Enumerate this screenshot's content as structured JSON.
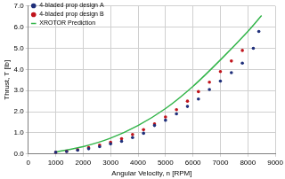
{
  "chart_data": {
    "type": "scatter",
    "x_label": "Angular Velocity, n [RPM]",
    "y_label": "Thrust, T [lb]",
    "xlim": [
      0,
      9000
    ],
    "xticks": [
      0,
      1000,
      2000,
      3000,
      4000,
      5000,
      6000,
      7000,
      8000,
      9000
    ],
    "ylim": [
      0,
      7
    ],
    "yticks": [
      {
        "value": 0,
        "label": "0.0"
      },
      {
        "value": 1,
        "label": "1.0"
      },
      {
        "value": 2,
        "label": "2.0"
      },
      {
        "value": 3,
        "label": "3.0"
      },
      {
        "value": 4,
        "label": "4.0"
      },
      {
        "value": 5,
        "label": "5.0"
      },
      {
        "value": 6,
        "label": "6.0"
      },
      {
        "value": 7,
        "label": "7.0"
      }
    ],
    "grid": true,
    "legend": "top-left",
    "series": [
      {
        "name": "4-bladed prop design A",
        "color": "#1f2f7a",
        "type": "scatter",
        "marker": "circle",
        "x": [
          1000,
          1400,
          1800,
          2200,
          2600,
          3000,
          3400,
          3800,
          4200,
          4600,
          5000,
          5400,
          5800,
          6200,
          6600,
          7000,
          7400,
          7800,
          8200,
          8400
        ],
        "values": [
          0.08,
          0.12,
          0.18,
          0.25,
          0.35,
          0.48,
          0.6,
          0.78,
          0.98,
          1.35,
          1.6,
          1.9,
          2.25,
          2.6,
          3.05,
          3.45,
          3.85,
          4.3,
          5.0,
          5.8
        ]
      },
      {
        "name": "4-bladed prop design B",
        "color": "#c0141c",
        "type": "scatter",
        "marker": "circle",
        "x": [
          1000,
          1400,
          1800,
          2200,
          2600,
          3000,
          3400,
          3800,
          4200,
          4600,
          5000,
          5400,
          5800,
          6200,
          6600,
          7000,
          7400,
          7800
        ],
        "values": [
          0.08,
          0.13,
          0.2,
          0.3,
          0.42,
          0.56,
          0.72,
          0.92,
          1.15,
          1.42,
          1.75,
          2.1,
          2.5,
          2.95,
          3.4,
          3.9,
          4.4,
          4.9
        ]
      },
      {
        "name": "XROTOR Prediction",
        "color": "#33b54a",
        "type": "line",
        "line_style": "solid",
        "x": [
          1000,
          2000,
          3000,
          4000,
          5000,
          6000,
          7000,
          8000,
          8500
        ],
        "values": [
          0.1,
          0.35,
          0.75,
          1.35,
          2.15,
          3.2,
          4.45,
          5.8,
          6.55
        ]
      }
    ]
  }
}
